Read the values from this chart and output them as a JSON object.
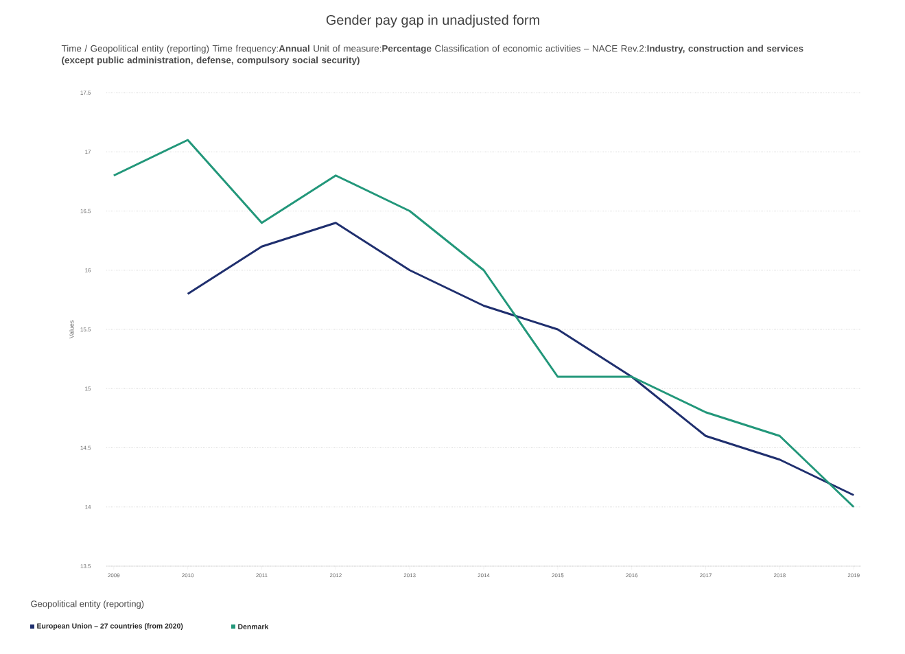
{
  "chart_data": {
    "type": "line",
    "title": "Gender pay gap in unadjusted form",
    "subtitle": "Time / Geopolitical entity (reporting)  Time frequency:**Annual**  Unit of measure:**Percentage**  Classification of economic activities – NACE Rev.2:**Industry, construction and services (except public administration, defense, compulsory social security)**",
    "ylabel": "Values",
    "legend_title": "Geopolitical entity (reporting)",
    "categories": [
      "2009",
      "2010",
      "2011",
      "2012",
      "2013",
      "2014",
      "2015",
      "2016",
      "2017",
      "2018",
      "2019"
    ],
    "series": [
      {
        "name": "European Union – 27 countries (from 2020)",
        "color": "#1f2f6e",
        "values": [
          null,
          15.8,
          16.2,
          16.4,
          16.0,
          15.7,
          15.5,
          15.1,
          14.6,
          14.4,
          14.1
        ]
      },
      {
        "name": "Denmark",
        "color": "#22977a",
        "values": [
          16.8,
          17.1,
          16.4,
          16.8,
          16.5,
          16.0,
          15.1,
          15.1,
          14.8,
          14.6,
          14.0
        ]
      }
    ],
    "ylim": [
      13.5,
      17.5
    ],
    "yticks": [
      13.5,
      14,
      14.5,
      15,
      15.5,
      16,
      16.5,
      17,
      17.5
    ],
    "grid": "y",
    "legend": "bottom",
    "marker": "none",
    "line_style": "solid"
  }
}
